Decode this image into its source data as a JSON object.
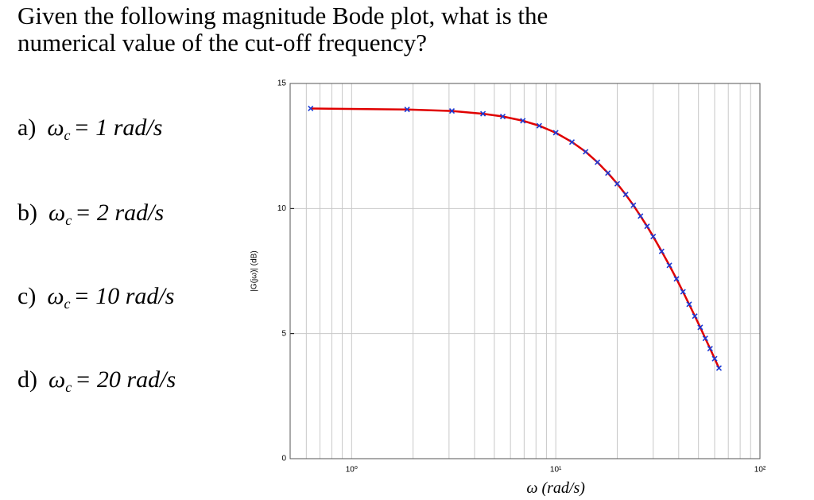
{
  "question": [
    "Given the following magnitude Bode plot, what is the",
    "numerical value of the cut-off frequency?"
  ],
  "options": [
    {
      "letter": "a)",
      "symbol": "ω",
      "sub": "c",
      "value": "= 1 rad/s"
    },
    {
      "letter": "b)",
      "symbol": "ω",
      "sub": "c",
      "value": "= 2 rad/s"
    },
    {
      "letter": "c)",
      "symbol": "ω",
      "sub": "c",
      "value": "= 10 rad/s"
    },
    {
      "letter": "d)",
      "symbol": "ω",
      "sub": "c",
      "value": "= 20 rad/s"
    }
  ],
  "chart_data": {
    "type": "line",
    "xlabel": "ω (rad/s)",
    "ylabel": "|G(jω)| (dB)",
    "log_x": true,
    "grid": true,
    "xlim": [
      0.5,
      100
    ],
    "ylim": [
      0,
      15
    ],
    "xticks": [
      {
        "value": 1,
        "label": "10⁰"
      },
      {
        "value": 10,
        "label": "10¹"
      },
      {
        "value": 100,
        "label": "10²"
      }
    ],
    "x_minor_ticks": [
      0.6,
      0.7,
      0.8,
      0.9,
      2,
      3,
      4,
      5,
      6,
      7,
      8,
      9,
      20,
      30,
      40,
      50,
      60,
      70,
      80,
      90
    ],
    "yticks": [
      0,
      5,
      10,
      15
    ],
    "series": [
      {
        "color": "#e00000",
        "marker_color": "#1a3ad6",
        "x": [
          0.63,
          1.87,
          3.1,
          4.4,
          5.5,
          6.9,
          8.3,
          10,
          12,
          14,
          16,
          18,
          20,
          22,
          24,
          26,
          28,
          30,
          33,
          36,
          39,
          42,
          45,
          48,
          51,
          54,
          57,
          60,
          63
        ],
        "values": [
          14.0,
          13.96,
          13.9,
          13.79,
          13.68,
          13.51,
          13.31,
          13.03,
          12.66,
          12.27,
          11.85,
          11.42,
          10.99,
          10.56,
          10.13,
          9.7,
          9.29,
          8.88,
          8.29,
          7.73,
          7.19,
          6.67,
          6.17,
          5.7,
          5.25,
          4.81,
          4.4,
          4.0,
          3.62
        ]
      }
    ]
  }
}
